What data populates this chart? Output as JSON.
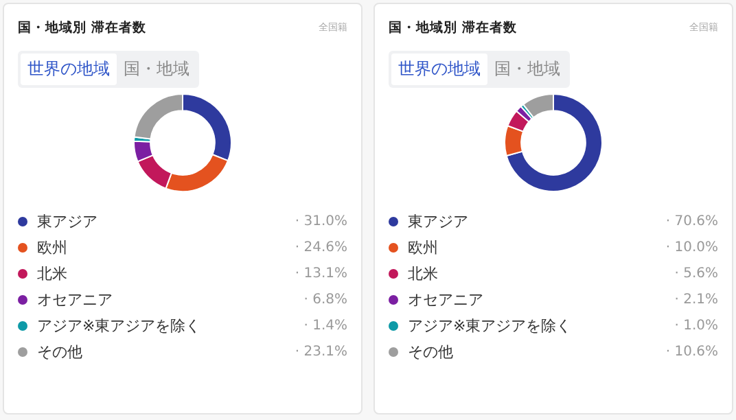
{
  "chart_data": [
    {
      "type": "donut",
      "title": "国・地域別 滞在者数",
      "annotations": [
        "全国籍",
        "世界の地域",
        "国・地域"
      ],
      "categories": [
        "東アジア",
        "欧州",
        "北米",
        "オセアニア",
        "アジア※東アジアを除く",
        "その他"
      ],
      "values": [
        31.0,
        24.6,
        13.1,
        6.8,
        1.4,
        23.1
      ],
      "value_labels": [
        "· 31.0%",
        "· 24.6%",
        "· 13.1%",
        "· 6.8%",
        "· 1.4%",
        "· 23.1%"
      ],
      "colors": [
        "#2e3a9e",
        "#e4521f",
        "#c2185b",
        "#7b1fa2",
        "#0e9aa7",
        "#9e9e9e"
      ],
      "legend": "bottom"
    },
    {
      "type": "donut",
      "title": "国・地域別 滞在者数",
      "annotations": [
        "全国籍",
        "世界の地域",
        "国・地域"
      ],
      "categories": [
        "東アジア",
        "欧州",
        "北米",
        "オセアニア",
        "アジア※東アジアを除く",
        "その他"
      ],
      "values": [
        70.6,
        10.0,
        5.6,
        2.1,
        1.0,
        10.6
      ],
      "value_labels": [
        "· 70.6%",
        "· 10.0%",
        "· 5.6%",
        "· 2.1%",
        "· 1.0%",
        "· 10.6%"
      ],
      "colors": [
        "#2e3a9e",
        "#e4521f",
        "#c2185b",
        "#7b1fa2",
        "#0e9aa7",
        "#9e9e9e"
      ],
      "legend": "bottom"
    }
  ]
}
